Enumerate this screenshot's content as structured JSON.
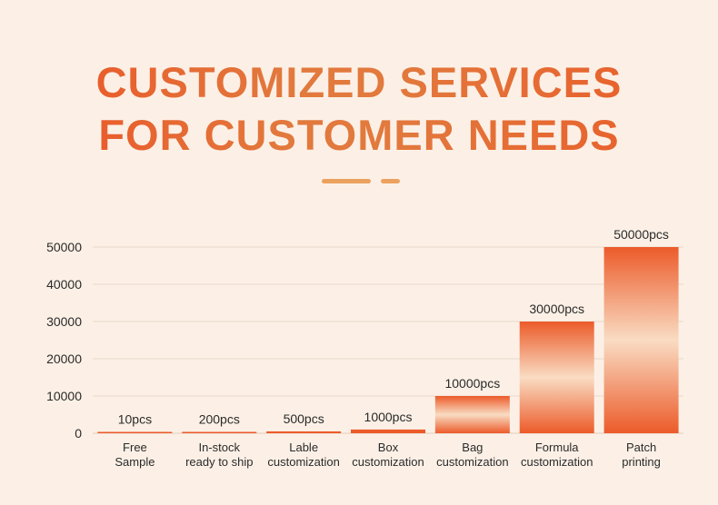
{
  "header": {
    "title_line1": "CUSTOMIZED SERVICES",
    "title_line2": "FOR CUSTOMER NEEDS"
  },
  "colors": {
    "background": "#fcf0e6",
    "bar_dark": "#ec5b2a",
    "bar_light": "#f9dcc3",
    "accent": "#eba25f"
  },
  "chart_data": {
    "type": "bar",
    "title": "",
    "xlabel": "",
    "ylabel": "",
    "ylim": [
      0,
      50000
    ],
    "yticks": [
      0,
      10000,
      20000,
      30000,
      40000,
      50000
    ],
    "grid": true,
    "categories": [
      [
        "Free",
        "Sample"
      ],
      [
        "In-stock",
        "ready to ship"
      ],
      [
        "Lable",
        "customization"
      ],
      [
        "Box",
        "customization"
      ],
      [
        "Bag",
        "customization"
      ],
      [
        "Formula",
        "customization"
      ],
      [
        "Patch",
        "printing"
      ]
    ],
    "values": [
      10,
      200,
      500,
      1000,
      10000,
      30000,
      50000
    ],
    "value_labels": [
      "10pcs",
      "200pcs",
      "500pcs",
      "1000pcs",
      "10000pcs",
      "30000pcs",
      "50000pcs"
    ]
  }
}
